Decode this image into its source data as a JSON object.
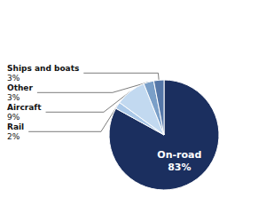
{
  "chart_data": {
    "type": "pie",
    "categories": [
      "On-road",
      "Rail",
      "Aircraft",
      "Other",
      "Ships and boats"
    ],
    "values": [
      83,
      2,
      9,
      3,
      3
    ],
    "value_labels": [
      "83%",
      "2%",
      "9%",
      "3%",
      "3%"
    ],
    "colors": [
      "#1b2f5f",
      "#aac8e8",
      "#c2d9f0",
      "#7a9fc8",
      "#5577a8"
    ],
    "data_labels": true
  }
}
